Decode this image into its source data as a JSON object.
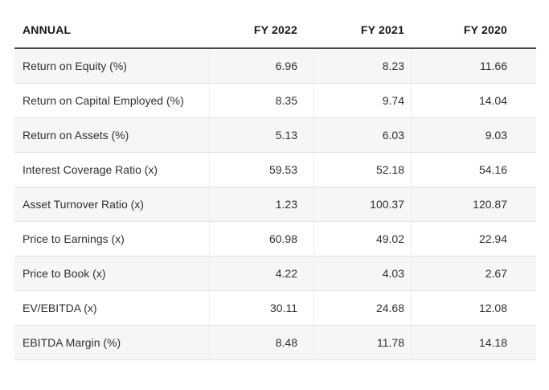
{
  "table": {
    "header": {
      "label": "ANNUAL",
      "columns": [
        "FY 2022",
        "FY 2021",
        "FY 2020"
      ]
    },
    "rows": [
      {
        "label": "Return on Equity (%)",
        "values": [
          "6.96",
          "8.23",
          "11.66"
        ]
      },
      {
        "label": "Return on Capital Employed (%)",
        "values": [
          "8.35",
          "9.74",
          "14.04"
        ]
      },
      {
        "label": "Return on Assets (%)",
        "values": [
          "5.13",
          "6.03",
          "9.03"
        ]
      },
      {
        "label": "Interest Coverage Ratio (x)",
        "values": [
          "59.53",
          "52.18",
          "54.16"
        ]
      },
      {
        "label": "Asset Turnover Ratio (x)",
        "values": [
          "1.23",
          "100.37",
          "120.87"
        ]
      },
      {
        "label": "Price to Earnings (x)",
        "values": [
          "60.98",
          "49.02",
          "22.94"
        ]
      },
      {
        "label": "Price to Book (x)",
        "values": [
          "4.22",
          "4.03",
          "2.67"
        ]
      },
      {
        "label": "EV/EBITDA (x)",
        "values": [
          "30.11",
          "24.68",
          "12.08"
        ]
      },
      {
        "label": "EBITDA Margin (%)",
        "values": [
          "8.48",
          "11.78",
          "14.18"
        ]
      }
    ]
  },
  "colors": {
    "zebra": "#f5f6f7",
    "row_border": "#e1e2e4",
    "header_border": "#46484b",
    "col_divider": "#ededee",
    "text": "#2f3033",
    "header_text": "#17181a",
    "page_bg": "#ffffff"
  }
}
